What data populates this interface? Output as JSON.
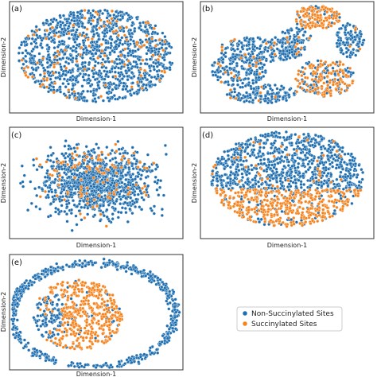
{
  "colors": {
    "non_succinylated": "#1f6fb0",
    "succinylated": "#f5841f",
    "marker_edge": "#ffffff",
    "frame": "#333333"
  },
  "legend": {
    "items": [
      {
        "label": "Non-Succinylated Sites",
        "color": "#1f6fb0"
      },
      {
        "label": "Succinylated Sites",
        "color": "#f5841f"
      }
    ]
  },
  "chart_data": [
    {
      "type": "scatter",
      "panel": "(a)",
      "xlabel": "Dimension-1",
      "ylabel": "Dimension-2",
      "series": [
        {
          "name": "Non-Succinylated Sites"
        },
        {
          "name": "Succinylated Sites"
        }
      ],
      "pattern": "single oval cloud; orange points sparsely mixed throughout"
    },
    {
      "type": "scatter",
      "panel": "(b)",
      "xlabel": "Dimension-1",
      "ylabel": "Dimension-2",
      "series": [
        {
          "name": "Non-Succinylated Sites"
        },
        {
          "name": "Succinylated Sites"
        }
      ],
      "pattern": "fragmented clusters; orange concentrated in top cluster and lower-right"
    },
    {
      "type": "scatter",
      "panel": "(c)",
      "xlabel": "Dimension-1",
      "ylabel": "Dimension-2",
      "series": [
        {
          "name": "Non-Succinylated Sites"
        },
        {
          "name": "Succinylated Sites"
        }
      ],
      "pattern": "diffuse cloud with irregular edges; orange scattered, more at top"
    },
    {
      "type": "scatter",
      "panel": "(d)",
      "xlabel": "Dimension-1",
      "ylabel": "Dimension-2",
      "series": [
        {
          "name": "Non-Succinylated Sites"
        },
        {
          "name": "Succinylated Sites"
        }
      ],
      "pattern": "blue upper half, orange lower half"
    },
    {
      "type": "scatter",
      "panel": "(e)",
      "xlabel": "Dimension-1",
      "ylabel": "Dimension-2",
      "series": [
        {
          "name": "Non-Succinylated Sites"
        },
        {
          "name": "Succinylated Sites"
        }
      ],
      "pattern": "blue C-shaped arc around an orange circular cluster"
    }
  ]
}
